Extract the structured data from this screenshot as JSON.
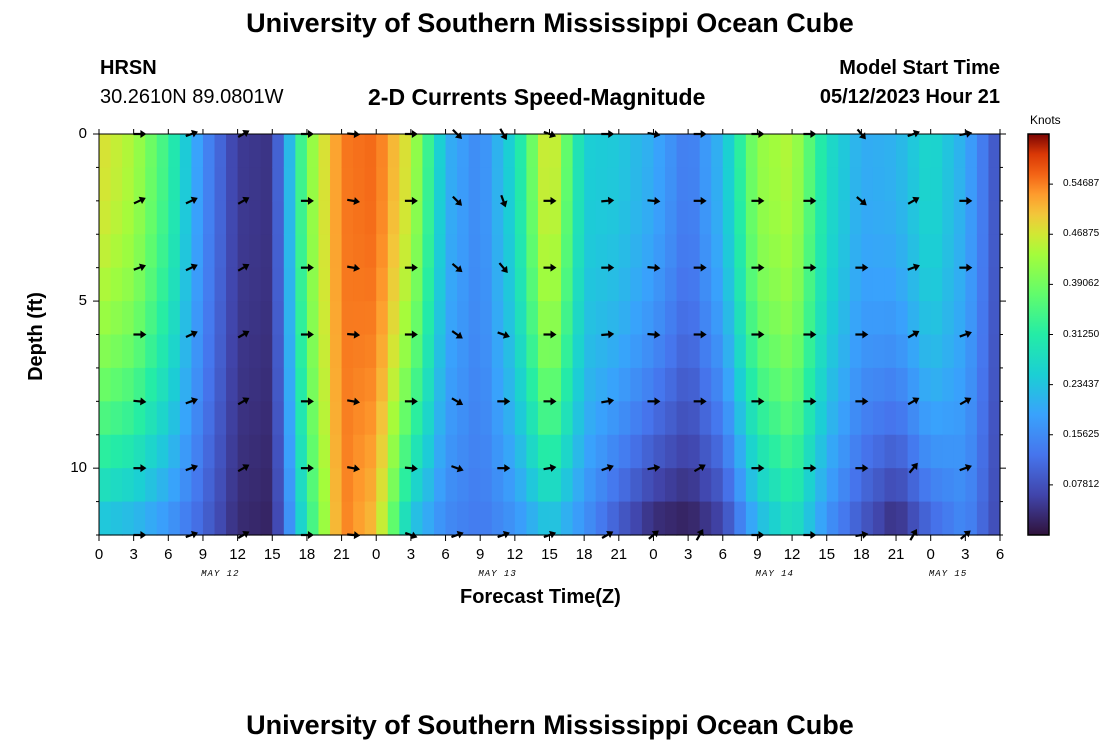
{
  "page": {
    "title": "University of Southern Mississippi Ocean Cube",
    "footer_title": "University of Southern Mississippi Ocean Cube",
    "station": "HRSN",
    "coords": "30.2610N  89.0801W",
    "model_start_label": "Model Start Time",
    "model_start_value": "05/12/2023 Hour 21",
    "subtitle": "2-D Currents Speed-Magnitude",
    "colorbar_units": "Knots"
  },
  "chart_data": {
    "type": "heatmap",
    "title": "2-D Currents Speed-Magnitude",
    "xlabel": "Forecast Time(Z)",
    "ylabel": "Depth (ft)",
    "x_tick_labels": [
      "0",
      "3",
      "6",
      "9",
      "12",
      "15",
      "18",
      "21",
      "0",
      "3",
      "6",
      "9",
      "12",
      "15",
      "18",
      "21",
      "0",
      "3",
      "6",
      "9",
      "12",
      "15",
      "18",
      "21",
      "0",
      "3",
      "6"
    ],
    "date_labels": [
      {
        "text": "MAY 12",
        "hour": 10.5
      },
      {
        "text": "MAY 13",
        "hour": 34.5
      },
      {
        "text": "MAY 14",
        "hour": 58.5
      },
      {
        "text": "MAY 15",
        "hour": 73.5
      }
    ],
    "y_ticks": [
      0,
      5,
      10
    ],
    "ylim": [
      0,
      12
    ],
    "xlim_hours": [
      0,
      78
    ],
    "colorbar": {
      "label": "Knots",
      "range": [
        0.0,
        0.625
      ],
      "tick_labels": [
        "0.54687",
        "0.46875",
        "0.39062",
        "0.31250",
        "0.23437",
        "0.15625",
        "0.07812"
      ],
      "tick_values": [
        0.54687,
        0.46875,
        0.39062,
        0.3125,
        0.23437,
        0.15625,
        0.07812
      ]
    },
    "time_hours": [
      0,
      3,
      6,
      9,
      12,
      15,
      18,
      21,
      24,
      27,
      30,
      33,
      36,
      39,
      42,
      45,
      48,
      51,
      54,
      57,
      60,
      63,
      66,
      69,
      72,
      75,
      78
    ],
    "speed_profile_surface": [
      0.48,
      0.44,
      0.33,
      0.16,
      0.05,
      0.04,
      0.4,
      0.55,
      0.56,
      0.46,
      0.21,
      0.15,
      0.27,
      0.5,
      0.25,
      0.24,
      0.2,
      0.13,
      0.22,
      0.42,
      0.45,
      0.28,
      0.2,
      0.21,
      0.27,
      0.2,
      0.07
    ],
    "speed_profile_bottom": [
      0.22,
      0.2,
      0.16,
      0.1,
      0.03,
      0.02,
      0.3,
      0.55,
      0.5,
      0.22,
      0.15,
      0.13,
      0.16,
      0.22,
      0.16,
      0.08,
      0.02,
      0.01,
      0.05,
      0.2,
      0.28,
      0.16,
      0.08,
      0.02,
      0.1,
      0.15,
      0.06
    ],
    "arrow_times": [
      3.5,
      8,
      12.5,
      18,
      22,
      27,
      31,
      35,
      39,
      44,
      48,
      52,
      57,
      61.5,
      66,
      70.5,
      75
    ],
    "arrow_depths": [
      0,
      2,
      4,
      6,
      8,
      10,
      12
    ],
    "arrow_directions_deg": [
      [
        180,
        205,
        200,
        180,
        175,
        180,
        180
      ],
      [
        200,
        205,
        205,
        205,
        200,
        200,
        200
      ],
      [
        210,
        210,
        210,
        210,
        210,
        210,
        210
      ],
      [
        180,
        180,
        180,
        180,
        180,
        180,
        180
      ],
      [
        175,
        170,
        170,
        175,
        170,
        170,
        175
      ],
      [
        180,
        180,
        180,
        180,
        180,
        175,
        160
      ],
      [
        135,
        135,
        140,
        145,
        150,
        160,
        200
      ],
      [
        120,
        110,
        130,
        160,
        180,
        180,
        200
      ],
      [
        160,
        180,
        180,
        180,
        180,
        190,
        200
      ],
      [
        180,
        185,
        180,
        185,
        190,
        200,
        210
      ],
      [
        170,
        175,
        175,
        175,
        180,
        190,
        220
      ],
      [
        180,
        180,
        180,
        180,
        180,
        210,
        240
      ],
      [
        180,
        180,
        180,
        180,
        180,
        180,
        180
      ],
      [
        180,
        180,
        180,
        180,
        180,
        180,
        180
      ],
      [
        130,
        140,
        180,
        180,
        180,
        180,
        190
      ],
      [
        200,
        210,
        200,
        210,
        210,
        230,
        240
      ],
      [
        190,
        180,
        180,
        200,
        210,
        200,
        220
      ]
    ]
  }
}
